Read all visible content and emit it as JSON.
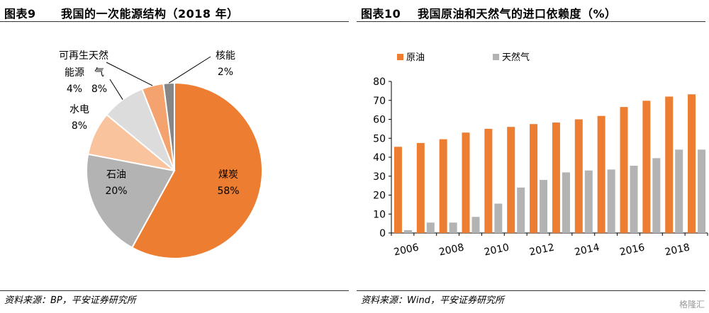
{
  "left_panel": {
    "figure_no": "图表9",
    "title": "我国的一次能源结构（2018 年）",
    "source": "资料来源：BP，平安证券研究所"
  },
  "right_panel": {
    "figure_no": "图表10",
    "title": "我国原油和天然气的进口依赖度（%）",
    "source": "资料来源：Wind，平安证券研究所"
  },
  "watermark": "格隆汇",
  "chart_data": [
    {
      "type": "pie",
      "title": "我国的一次能源结构（2018 年）",
      "slices": [
        {
          "label": "煤炭",
          "value": 58,
          "value_label": "58%",
          "color": "#ED7D31"
        },
        {
          "label": "石油",
          "value": 20,
          "value_label": "20%",
          "color": "#B3B3B3"
        },
        {
          "label": "水电",
          "value": 8,
          "value_label": "8%",
          "color": "#F9C39E"
        },
        {
          "label": "气",
          "value": 8,
          "value_label": "8%",
          "color": "#DCDCDC"
        },
        {
          "label": "可再生能源",
          "label_line1": "可再生天然",
          "label_line2": "能源",
          "value": 4,
          "value_label": "4%",
          "color": "#F4A36E"
        },
        {
          "label": "核能",
          "value": 2,
          "value_label": "2%",
          "color": "#868686"
        }
      ]
    },
    {
      "type": "bar",
      "title": "我国原油和天然气的进口依赖度（%）",
      "categories": [
        "2006",
        "2007",
        "2008",
        "2009",
        "2010",
        "2011",
        "2012",
        "2013",
        "2014",
        "2015",
        "2016",
        "2017",
        "2018",
        "2019"
      ],
      "tick_labels": [
        "2006",
        "2008",
        "2010",
        "2012",
        "2014",
        "2016",
        "2018"
      ],
      "series": [
        {
          "name": "原油",
          "color": "#ED7D31",
          "values": [
            45.5,
            47.5,
            49.5,
            53,
            55,
            56,
            57.5,
            58.3,
            60,
            61.8,
            66.5,
            69.8,
            72,
            73.2
          ]
        },
        {
          "name": "天然气",
          "color": "#B3B3B3",
          "values": [
            1.5,
            5.5,
            5.5,
            8.5,
            15.5,
            24,
            28,
            32,
            33,
            33.5,
            35.5,
            39.5,
            44,
            44
          ]
        }
      ],
      "ylim": [
        0,
        80
      ],
      "yticks": [
        0,
        10,
        20,
        30,
        40,
        50,
        60,
        70,
        80
      ],
      "legend": "top-left"
    }
  ]
}
